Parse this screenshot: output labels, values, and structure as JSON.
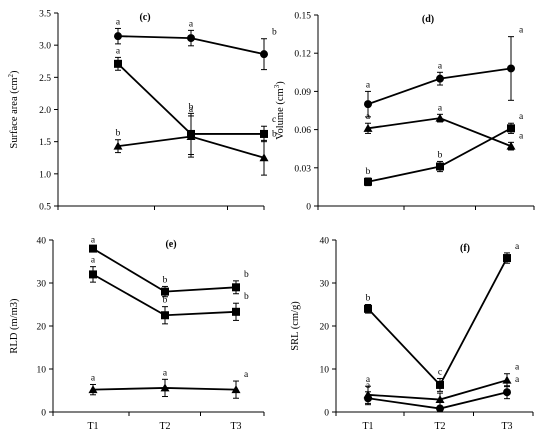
{
  "chart_data": [
    {
      "id": "c",
      "type": "line",
      "title": "(c)",
      "ylabel": "Surface area (cm²)",
      "ylabel_base": "Surface area (cm",
      "ylabel_sup": "2",
      "ylabel_end": ")",
      "categories": [
        "T1",
        "T2",
        "T3"
      ],
      "ylim": [
        0.5,
        3.5
      ],
      "yticks": [
        "0.5",
        "1.0",
        "1.5",
        "2.0",
        "2.5",
        "3.0",
        "3.5"
      ],
      "show_xtick_labels": false,
      "series": [
        {
          "marker": "circle",
          "values": [
            3.14,
            3.11,
            2.86
          ],
          "errors": [
            0.12,
            0.12,
            0.24
          ],
          "letters": [
            "a",
            "a",
            "b"
          ]
        },
        {
          "marker": "square",
          "values": [
            2.71,
            1.62,
            1.62
          ],
          "errors": [
            0.1,
            0.32,
            0.12
          ],
          "letters": [
            "a",
            "b",
            "c"
          ]
        },
        {
          "marker": "triangle",
          "values": [
            1.43,
            1.58,
            1.25
          ],
          "errors": [
            0.1,
            0.32,
            0.27
          ],
          "letters": [
            "b",
            "a",
            "b"
          ]
        }
      ]
    },
    {
      "id": "d",
      "type": "line",
      "title": "(d)",
      "ylabel": "Volume (cm³)",
      "ylabel_base": "Volume (cm",
      "ylabel_sup": "3",
      "ylabel_end": ")",
      "categories": [
        "T1",
        "T2",
        "T3"
      ],
      "ylim": [
        0,
        0.15
      ],
      "yticks": [
        "0",
        "0.03",
        "0.06",
        "0.09",
        "0.12",
        "0.15"
      ],
      "show_xtick_labels": false,
      "series": [
        {
          "marker": "circle",
          "values": [
            0.08,
            0.1,
            0.108
          ],
          "errors": [
            0.01,
            0.005,
            0.025
          ],
          "letters": [
            "a",
            "a",
            "a"
          ]
        },
        {
          "marker": "triangle",
          "values": [
            0.061,
            0.069,
            0.047
          ],
          "errors": [
            0.004,
            0.003,
            0.003
          ],
          "letters": [
            "a",
            "a",
            "a"
          ]
        },
        {
          "marker": "square",
          "values": [
            0.019,
            0.031,
            0.061
          ],
          "errors": [
            0.003,
            0.004,
            0.004
          ],
          "letters": [
            "b",
            "b",
            "a"
          ]
        }
      ]
    },
    {
      "id": "e",
      "type": "line",
      "title": "(e)",
      "ylabel": "RLD (m/m3)",
      "categories": [
        "T1",
        "T2",
        "T3"
      ],
      "ylim": [
        0,
        40
      ],
      "yticks": [
        "0",
        "10",
        "20",
        "30",
        "40"
      ],
      "show_xtick_labels": true,
      "series": [
        {
          "marker": "square",
          "values": [
            38,
            28,
            29
          ],
          "errors": [
            0.5,
            1.2,
            1.5
          ],
          "letters": [
            "a",
            "b",
            "b"
          ]
        },
        {
          "marker": "square",
          "values": [
            32,
            22.5,
            23.3
          ],
          "errors": [
            1.8,
            2.0,
            2.0
          ],
          "letters": [
            "a",
            "b",
            "b"
          ]
        },
        {
          "marker": "triangle",
          "values": [
            5.2,
            5.6,
            5.2
          ],
          "errors": [
            1.2,
            2.0,
            2.0
          ],
          "letters": [
            "a",
            "a",
            "a"
          ]
        }
      ]
    },
    {
      "id": "f",
      "type": "line",
      "title": "(f)",
      "ylabel": "SRL (cm/g)",
      "categories": [
        "T1",
        "T2",
        "T3"
      ],
      "ylim": [
        0,
        40
      ],
      "yticks": [
        "0",
        "10",
        "20",
        "30",
        "40"
      ],
      "show_xtick_labels": true,
      "series": [
        {
          "marker": "square",
          "values": [
            24,
            6.3,
            35.8
          ],
          "errors": [
            1.0,
            1.5,
            1.2
          ],
          "letters": [
            "b",
            "c",
            "a"
          ]
        },
        {
          "marker": "triangle",
          "values": [
            4,
            2.9,
            7.4
          ],
          "errors": [
            2.0,
            1.5,
            1.5
          ],
          "letters": [
            "a",
            "a",
            "a"
          ]
        },
        {
          "marker": "circle",
          "values": [
            3.2,
            0.8,
            4.6
          ],
          "errors": [
            1.5,
            0.5,
            1.5
          ],
          "letters": [
            "a",
            "a",
            "a"
          ]
        }
      ]
    }
  ]
}
